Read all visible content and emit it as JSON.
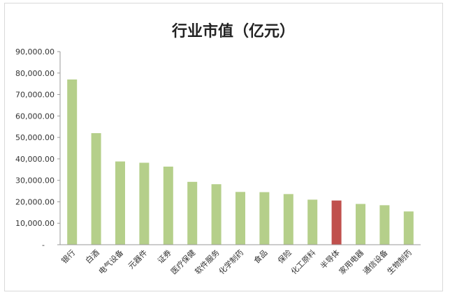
{
  "chart_data": {
    "type": "bar",
    "title": "行业市值（亿元）",
    "xlabel": "",
    "ylabel": "",
    "ylim": [
      0,
      90000
    ],
    "yticks": [
      0,
      10000,
      20000,
      30000,
      40000,
      50000,
      60000,
      70000,
      80000,
      90000
    ],
    "ytick_labels": [
      "-",
      "10,000.00",
      "20,000.00",
      "30,000.00",
      "40,000.00",
      "50,000.00",
      "60,000.00",
      "70,000.00",
      "80,000.00",
      "90,000.00"
    ],
    "categories": [
      "银行",
      "白酒",
      "电气设备",
      "元器件",
      "证券",
      "医疗保健",
      "软件服务",
      "化学制药",
      "食品",
      "保险",
      "化工原料",
      "半导体",
      "家用电器",
      "通信设备",
      "生物制药"
    ],
    "values": [
      77000,
      52000,
      38800,
      38200,
      36400,
      29300,
      28200,
      24600,
      24500,
      23600,
      21000,
      20600,
      19000,
      18400,
      15500
    ],
    "highlight_index": 11,
    "colors": {
      "bar": "#b5cf8a",
      "highlight": "#c0504d",
      "grid": "#d9d9d9"
    },
    "grid": false,
    "legend": "none"
  }
}
